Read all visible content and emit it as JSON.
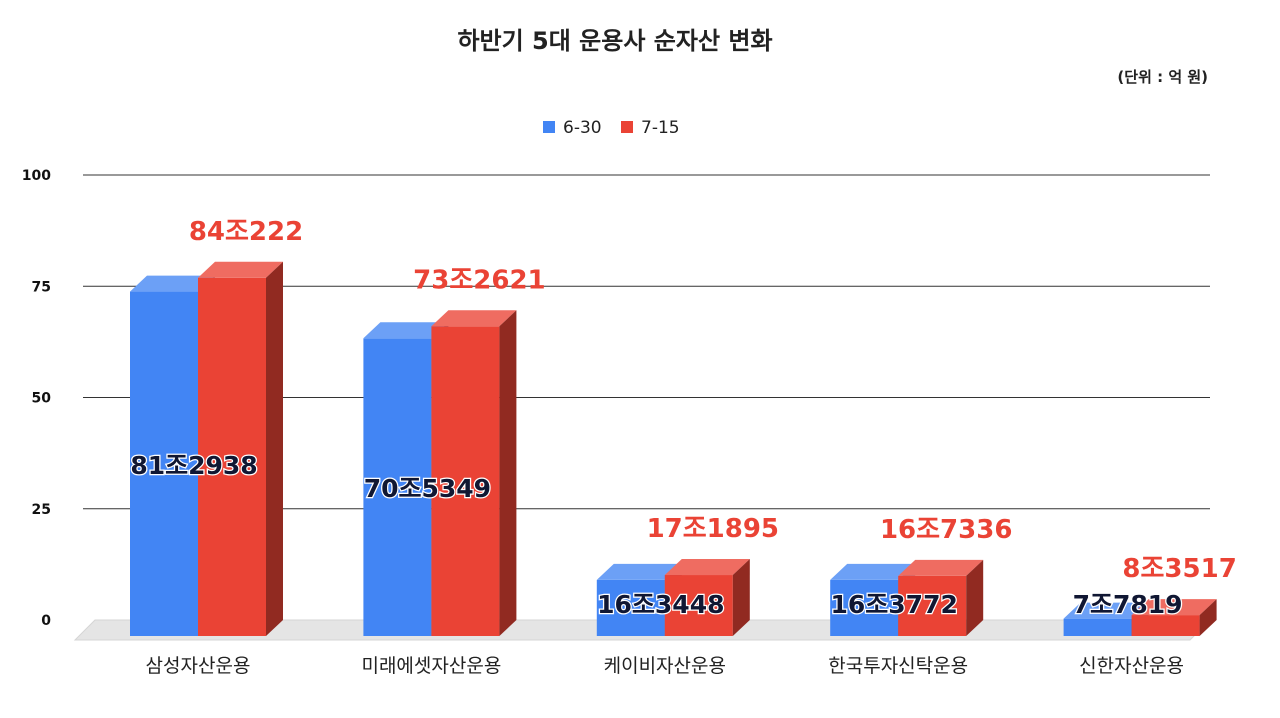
{
  "chart_data": {
    "type": "bar",
    "title": "하반기 5대 운용사 순자산 변화",
    "unit": "(단위 : 억 원)",
    "categories": [
      "삼성자산운용",
      "미래에셋자산운용",
      "케이비자산운용",
      "한국투자신탁운용",
      "신한자산운용"
    ],
    "series": [
      {
        "name": "6-30",
        "color": "#4285f4",
        "values": [
          77.4,
          66.9,
          12.6,
          12.6,
          3.9
        ],
        "labels": [
          "81조2938",
          "70조5349",
          "16조3448",
          "16조3772",
          "7조7819"
        ]
      },
      {
        "name": "7-15",
        "color": "#ea4335",
        "values": [
          80.5,
          69.6,
          13.7,
          13.5,
          4.7
        ],
        "labels": [
          "84조222",
          "73조2621",
          "17조1895",
          "16조7336",
          "8조3517"
        ]
      }
    ],
    "ylim": [
      0,
      100
    ],
    "yticks": [
      0,
      25,
      50,
      75,
      100
    ],
    "grid": true,
    "legend_position": "top-center",
    "style": "3d-bar"
  }
}
